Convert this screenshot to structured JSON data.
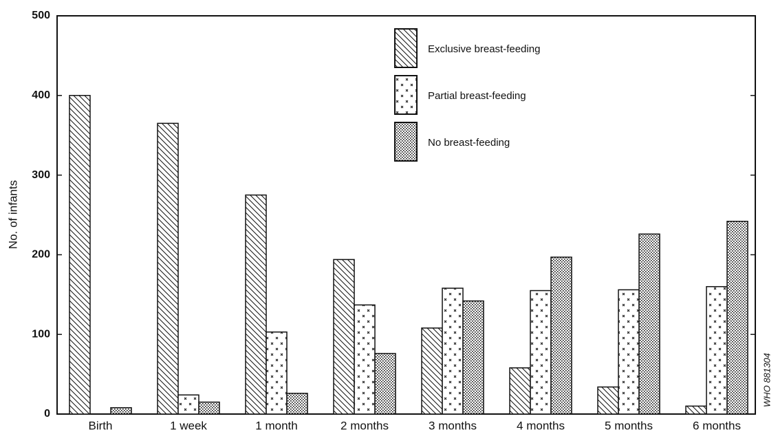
{
  "chart_data": {
    "type": "bar",
    "y_label": "No. of infants",
    "side_note": "WHO 881304",
    "categories": [
      "Birth",
      "1 week",
      "1 month",
      "2 months",
      "3 months",
      "4 months",
      "5 months",
      "6 months"
    ],
    "series": [
      {
        "name": "Exclusive breast-feeding",
        "pattern": "hatch",
        "color": "#111111",
        "values": [
          400,
          365,
          275,
          194,
          108,
          58,
          34,
          10
        ]
      },
      {
        "name": "Partial breast-feeding",
        "pattern": "cross",
        "color": "#111111",
        "values": [
          0,
          24,
          103,
          137,
          158,
          155,
          156,
          160
        ]
      },
      {
        "name": "No breast-feeding",
        "pattern": "dots",
        "color": "#111111",
        "values": [
          8,
          15,
          26,
          76,
          142,
          197,
          226,
          242
        ]
      }
    ],
    "ylim": [
      0,
      500
    ],
    "yticks": [
      0,
      100,
      200,
      300,
      400,
      500
    ],
    "legend": "top"
  }
}
